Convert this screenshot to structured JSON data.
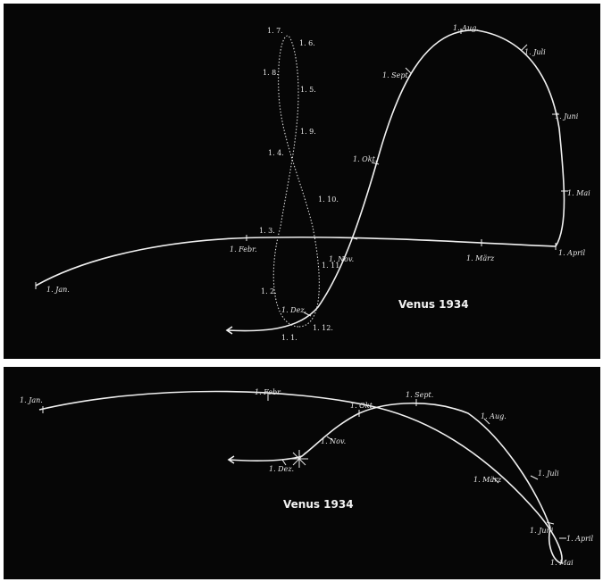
{
  "top_panel": {
    "title": "Venus 1934",
    "venus_labels": {
      "jan": "1. Jan.",
      "feb": "1. Febr.",
      "mar": "1. März",
      "apr": "1. April",
      "mai": "1. Mai",
      "jun": "1. Juni",
      "jul": "1. Juli",
      "aug": "1. Aug.",
      "sep": "1. Sept.",
      "okt": "1. Okt.",
      "nov": "1. Nov.",
      "dez": "1. Dez."
    },
    "sun_labels": {
      "l_1_1": "1. 1.",
      "l_1_2": "1. 2.",
      "l_1_3": "1. 3.",
      "l_1_4": "1. 4.",
      "l_1_5": "1. 5.",
      "l_1_6": "1. 6.",
      "l_1_7": "1. 7.",
      "l_1_8": "1. 8.",
      "l_1_9": "1. 9.",
      "l_1_10": "1. 10.",
      "l_1_11": "1. 11",
      "l_1_12": "1. 12."
    }
  },
  "bottom_panel": {
    "title": "Venus 1934",
    "venus_labels": {
      "jan": "1. Jan.",
      "feb": "1. Febr.",
      "okt": "1. Okt.",
      "sep": "1. Sept.",
      "aug": "1. Aug.",
      "jul": "1. Juli",
      "mar": "1. März",
      "nov": "1. Nov.",
      "dez": "1. Dez.",
      "jun": "1. Juni",
      "apr": "1. April",
      "mai": "1. Mai"
    }
  }
}
